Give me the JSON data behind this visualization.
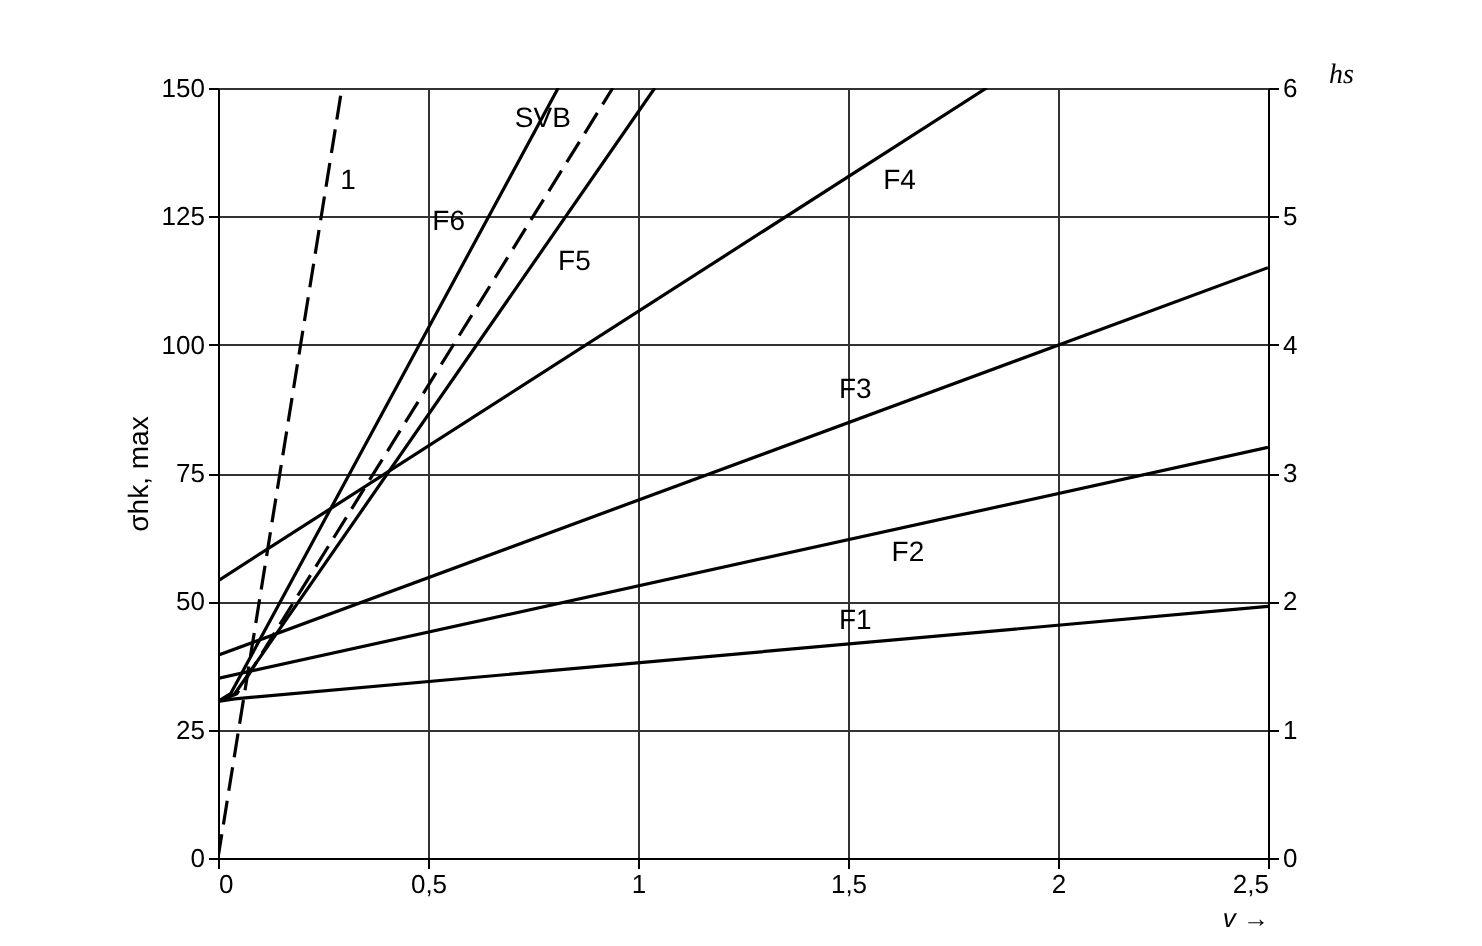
{
  "chart_data": {
    "type": "line",
    "xlabel": "v →",
    "ylabel": "σhk, max",
    "y2label": "hs",
    "xlim": [
      0,
      2.5
    ],
    "ylim": [
      0,
      150
    ],
    "y2lim": [
      0,
      6
    ],
    "xticks": [
      0,
      {
        "value": 0.5,
        "label": "0,5"
      },
      1,
      {
        "value": 1.5,
        "label": "1,5"
      },
      2,
      {
        "value": 2.5,
        "label": "2,5"
      }
    ],
    "yticks": [
      0,
      25,
      50,
      75,
      100,
      125,
      150
    ],
    "y2ticks": [
      0,
      1,
      2,
      3,
      4,
      5,
      6
    ],
    "grid": true,
    "series": [
      {
        "color": "#000000",
        "x": [
          0,
          0.04,
          2.5
        ],
        "values": [
          30.5,
          31,
          49
        ],
        "line_style": "solid"
      },
      {
        "color": "#000000",
        "x": [
          0,
          2.5
        ],
        "values": [
          35,
          80
        ],
        "line_style": "solid"
      },
      {
        "color": "#000000",
        "x": [
          0,
          2.5
        ],
        "values": [
          39.5,
          115
        ],
        "line_style": "solid"
      },
      {
        "color": "#000000",
        "x": [
          0,
          1.83
        ],
        "values": [
          54,
          150
        ],
        "line_style": "solid"
      },
      {
        "color": "#000000",
        "x": [
          0,
          0.04,
          1.04
        ],
        "values": [
          30.5,
          32,
          150
        ],
        "line_style": "solid"
      },
      {
        "color": "#000000",
        "x": [
          0,
          0.03,
          0.81
        ],
        "values": [
          30.5,
          32,
          150
        ],
        "line_style": "solid"
      },
      {
        "color": "#000000",
        "x": [
          0,
          0.045,
          0.94
        ],
        "values": [
          30.5,
          32,
          150
        ],
        "line_style": "dashed"
      },
      {
        "color": "#000000",
        "x": [
          0,
          0.295
        ],
        "values": [
          0,
          150
        ],
        "line_style": "dashed"
      }
    ],
    "annotations": [
      {
        "text": "F1",
        "x": 1.58,
        "y": 42.3
      },
      {
        "text": "F2",
        "x": 1.58,
        "y": 63.4
      },
      {
        "text": "F3",
        "x": 1.58,
        "y": 87.2
      },
      {
        "text": "F4",
        "x": 1.56,
        "y": 135.8
      },
      {
        "text": "F5",
        "x": 0.786,
        "y": 120
      },
      {
        "text": "F6",
        "x": 0.612,
        "y": 120
      },
      {
        "text": "SVB",
        "x": 0.864,
        "y": 140
      },
      {
        "text": "1",
        "x": 0.267,
        "y": 135.8
      }
    ]
  }
}
